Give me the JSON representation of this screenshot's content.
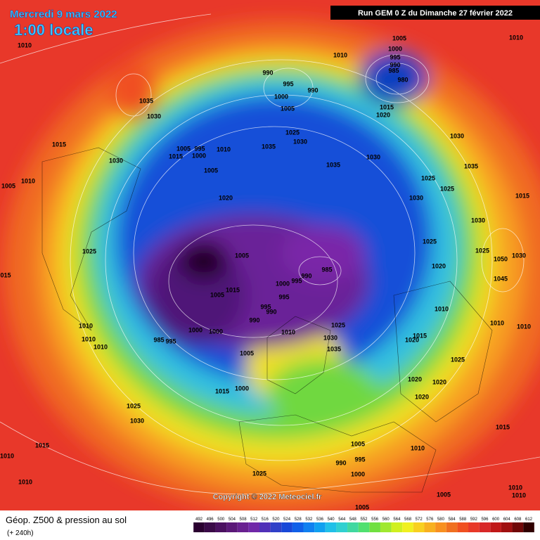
{
  "map": {
    "header": {
      "date": "Mercredi 9 mars 2022",
      "time": "1:00 locale",
      "run": "Run GEM 0 Z du Dimanche 27 février 2022"
    },
    "copyright": "Copyright © 2022 Meteociel.fr",
    "footer": {
      "title": "Géop. Z500 & pression au sol",
      "lead": "(+ 240h)"
    },
    "colorbar": {
      "ticks": [
        "492",
        "496",
        "500",
        "504",
        "508",
        "512",
        "516",
        "520",
        "524",
        "528",
        "532",
        "536",
        "540",
        "544",
        "548",
        "552",
        "556",
        "560",
        "564",
        "568",
        "572",
        "576",
        "580",
        "584",
        "588",
        "592",
        "596",
        "600",
        "604",
        "608",
        "612"
      ],
      "colors": [
        "#2a0030",
        "#3a0a48",
        "#4a1060",
        "#5a1878",
        "#682090",
        "#7028a8",
        "#5030b8",
        "#3040c8",
        "#1848d8",
        "#1060e8",
        "#1080f0",
        "#10a0f0",
        "#20c0e8",
        "#30d0d0",
        "#40d8a0",
        "#50e070",
        "#70e040",
        "#a0e830",
        "#d0f020",
        "#f0f020",
        "#f8d020",
        "#f8b020",
        "#f89020",
        "#f07020",
        "#f05020",
        "#e83828",
        "#d82828",
        "#c01818",
        "#a01010",
        "#700808",
        "#300000"
      ]
    },
    "pressure_labels": [
      "1010",
      "1005",
      "1010",
      "1000",
      "995",
      "990",
      "985",
      "980",
      "1010",
      "990",
      "995",
      "990",
      "1000",
      "1005",
      "1015",
      "1020",
      "1035",
      "1030",
      "1025",
      "1030",
      "1030",
      "1015",
      "1005",
      "995",
      "1010",
      "1035",
      "1015",
      "1000",
      "1030",
      "1035",
      "1030",
      "1035",
      "1005",
      "1010",
      "1005",
      "1025",
      "1025",
      "1015",
      "1020",
      "1030",
      "1030",
      "1025",
      "1025",
      "1025",
      "1050",
      "1030",
      "1005",
      "1020",
      "985",
      "990",
      "995",
      "1000",
      "1045",
      "015",
      "995",
      "1015",
      "1005",
      "995",
      "990",
      "990",
      "1010",
      "1010",
      "1010",
      "1010",
      "1025",
      "1010",
      "1000",
      "1000",
      "1030",
      "1035",
      "1015",
      "1020",
      "1010",
      "985",
      "995",
      "1010",
      "1005",
      "1025",
      "1020",
      "1020",
      "1020",
      "1015",
      "1000",
      "1025",
      "1030",
      "1015",
      "1015",
      "1005",
      "1010",
      "1010",
      "990",
      "995",
      "1000",
      "1025",
      "1010",
      "1010",
      "1010",
      "1005",
      "1005"
    ]
  }
}
